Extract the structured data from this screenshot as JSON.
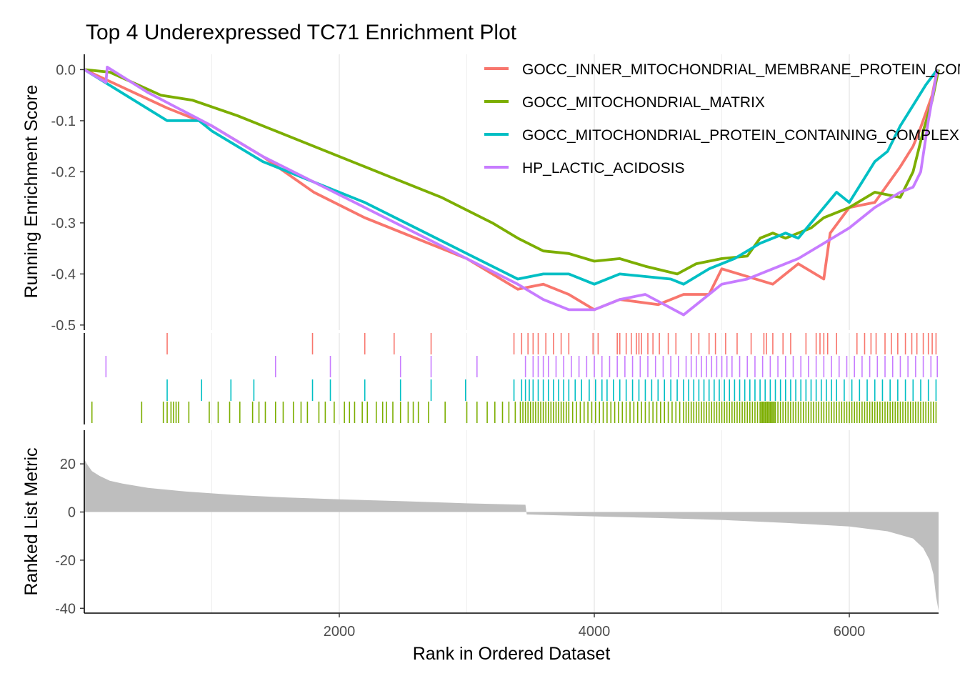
{
  "chart_data": {
    "type": "line",
    "title": "Top 4 Underexpressed TC71 Enrichment Plot",
    "xlabel": "Rank in Ordered Dataset",
    "x_ticks": [
      2000,
      4000,
      6000
    ],
    "xlim": [
      0,
      6700
    ],
    "grid": true,
    "legend_position": "top-right",
    "panels": {
      "running_score": {
        "ylabel": "Running Enrichment Score",
        "ylim": [
          -0.51,
          0.03
        ],
        "y_ticks": [
          0.0,
          -0.1,
          -0.2,
          -0.3,
          -0.4,
          -0.5
        ],
        "y_tick_labels": [
          "0.0",
          "-0.1",
          "-0.2",
          "-0.3",
          "-0.4",
          "-0.5"
        ]
      },
      "ranked_metric": {
        "ylabel": "Ranked List Metric",
        "ylim": [
          -42,
          34
        ],
        "y_ticks": [
          20,
          0,
          -20,
          -40
        ],
        "y_tick_labels": [
          "20",
          "0",
          "-20",
          "-40"
        ],
        "fill_color": "#bebebe",
        "points": [
          [
            0,
            22
          ],
          [
            20,
            20
          ],
          [
            60,
            17
          ],
          [
            120,
            15
          ],
          [
            200,
            13
          ],
          [
            300,
            11.8
          ],
          [
            500,
            10
          ],
          [
            800,
            8.5
          ],
          [
            1200,
            7
          ],
          [
            1600,
            6
          ],
          [
            2000,
            5.3
          ],
          [
            2500,
            4.5
          ],
          [
            3000,
            3.6
          ],
          [
            3460,
            3
          ],
          [
            3470,
            -1
          ],
          [
            4000,
            -1.8
          ],
          [
            4500,
            -2.5
          ],
          [
            5000,
            -3.3
          ],
          [
            5500,
            -4.5
          ],
          [
            6000,
            -6
          ],
          [
            6300,
            -8
          ],
          [
            6500,
            -11
          ],
          [
            6580,
            -15
          ],
          [
            6630,
            -20
          ],
          [
            6660,
            -26
          ],
          [
            6680,
            -35
          ],
          [
            6700,
            -41
          ]
        ]
      }
    },
    "series": [
      {
        "name": "GOCC_INNER_MITOCHONDRIAL_MEMBRANE_PROTEIN_COMPLEX",
        "color": "#F8766D",
        "points": [
          [
            0,
            0
          ],
          [
            650,
            -0.075
          ],
          [
            1000,
            -0.11
          ],
          [
            1400,
            -0.17
          ],
          [
            1800,
            -0.24
          ],
          [
            2200,
            -0.29
          ],
          [
            2600,
            -0.33
          ],
          [
            3000,
            -0.37
          ],
          [
            3400,
            -0.43
          ],
          [
            3600,
            -0.42
          ],
          [
            3800,
            -0.44
          ],
          [
            4000,
            -0.47
          ],
          [
            4200,
            -0.45
          ],
          [
            4500,
            -0.46
          ],
          [
            4700,
            -0.44
          ],
          [
            4900,
            -0.44
          ],
          [
            5000,
            -0.39
          ],
          [
            5400,
            -0.42
          ],
          [
            5600,
            -0.38
          ],
          [
            5800,
            -0.41
          ],
          [
            5850,
            -0.32
          ],
          [
            6000,
            -0.27
          ],
          [
            6200,
            -0.26
          ],
          [
            6400,
            -0.19
          ],
          [
            6500,
            -0.15
          ],
          [
            6550,
            -0.12
          ],
          [
            6650,
            -0.05
          ],
          [
            6690,
            0
          ]
        ],
        "rug_ranks": [
          650,
          1790,
          2200,
          2430,
          2720,
          3370,
          3430,
          3480,
          3520,
          3560,
          3620,
          3680,
          3740,
          3800,
          3990,
          4030,
          4180,
          4200,
          4250,
          4290,
          4330,
          4350,
          4370,
          4420,
          4460,
          4510,
          4580,
          4640,
          4760,
          4820,
          4900,
          4950,
          5030,
          5120,
          5230,
          5330,
          5350,
          5400,
          5480,
          5540,
          5660,
          5740,
          5770,
          5800,
          5830,
          5900,
          6060,
          6120,
          6170,
          6210,
          6280,
          6330,
          6380,
          6440,
          6490,
          6530,
          6580,
          6620,
          6650,
          6680
        ]
      },
      {
        "name": "GOCC_MITOCHONDRIAL_MATRIX",
        "color": "#7CAE00",
        "points": [
          [
            0,
            0
          ],
          [
            200,
            -0.005
          ],
          [
            600,
            -0.05
          ],
          [
            850,
            -0.06
          ],
          [
            1200,
            -0.09
          ],
          [
            1600,
            -0.13
          ],
          [
            2000,
            -0.17
          ],
          [
            2400,
            -0.21
          ],
          [
            2800,
            -0.25
          ],
          [
            3200,
            -0.3
          ],
          [
            3400,
            -0.33
          ],
          [
            3600,
            -0.355
          ],
          [
            3800,
            -0.36
          ],
          [
            4000,
            -0.375
          ],
          [
            4200,
            -0.37
          ],
          [
            4400,
            -0.385
          ],
          [
            4650,
            -0.4
          ],
          [
            4800,
            -0.38
          ],
          [
            5000,
            -0.37
          ],
          [
            5200,
            -0.365
          ],
          [
            5300,
            -0.33
          ],
          [
            5400,
            -0.32
          ],
          [
            5500,
            -0.33
          ],
          [
            5700,
            -0.31
          ],
          [
            5800,
            -0.29
          ],
          [
            6000,
            -0.27
          ],
          [
            6200,
            -0.24
          ],
          [
            6400,
            -0.25
          ],
          [
            6500,
            -0.2
          ],
          [
            6580,
            -0.12
          ],
          [
            6650,
            -0.06
          ],
          [
            6700,
            0
          ]
        ],
        "rug_ranks": [
          60,
          450,
          620,
          650,
          680,
          700,
          720,
          740,
          820,
          980,
          1050,
          1140,
          1220,
          1320,
          1370,
          1420,
          1500,
          1560,
          1640,
          1700,
          1750,
          1840,
          1890,
          1960,
          2040,
          2080,
          2120,
          2180,
          2220,
          2290,
          2340,
          2370,
          2420,
          2480,
          2540,
          2580,
          2620,
          2700,
          2830,
          3000,
          3080,
          3160,
          3220,
          3280,
          3330,
          3380,
          3420,
          3440,
          3460,
          3480,
          3500,
          3520,
          3540,
          3560,
          3580,
          3600,
          3620,
          3640,
          3660,
          3680,
          3700,
          3720,
          3740,
          3760,
          3780,
          3800,
          3830,
          3860,
          3890,
          3920,
          3950,
          3980,
          4010,
          4040,
          4070,
          4100,
          4130,
          4160,
          4190,
          4220,
          4250,
          4280,
          4310,
          4340,
          4370,
          4400,
          4430,
          4460,
          4490,
          4520,
          4550,
          4580,
          4610,
          4640,
          4670,
          4700,
          4720,
          4740,
          4760,
          4780,
          4800,
          4820,
          4840,
          4860,
          4880,
          4900,
          4920,
          4940,
          4960,
          4980,
          5000,
          5020,
          5040,
          5060,
          5080,
          5100,
          5120,
          5140,
          5160,
          5180,
          5200,
          5220,
          5240,
          5260,
          5280,
          5300,
          5310,
          5320,
          5330,
          5340,
          5350,
          5360,
          5370,
          5380,
          5390,
          5400,
          5410,
          5420,
          5440,
          5460,
          5480,
          5500,
          5520,
          5540,
          5560,
          5580,
          5600,
          5620,
          5640,
          5660,
          5680,
          5700,
          5720,
          5740,
          5760,
          5780,
          5800,
          5820,
          5840,
          5860,
          5880,
          5900,
          5920,
          5940,
          5960,
          5980,
          6000,
          6020,
          6040,
          6060,
          6080,
          6100,
          6120,
          6140,
          6160,
          6180,
          6200,
          6220,
          6240,
          6260,
          6280,
          6300,
          6320,
          6340,
          6360,
          6380,
          6400,
          6420,
          6440,
          6460,
          6480,
          6500,
          6520,
          6540,
          6560,
          6580,
          6600,
          6620,
          6640,
          6660,
          6680
        ]
      },
      {
        "name": "GOCC_MITOCHONDRIAL_PROTEIN_CONTAINING_COMPLEX",
        "color": "#00BFC4",
        "points": [
          [
            0,
            0
          ],
          [
            650,
            -0.1
          ],
          [
            900,
            -0.1
          ],
          [
            1000,
            -0.12
          ],
          [
            1400,
            -0.18
          ],
          [
            1800,
            -0.22
          ],
          [
            2200,
            -0.26
          ],
          [
            2600,
            -0.31
          ],
          [
            3000,
            -0.36
          ],
          [
            3400,
            -0.41
          ],
          [
            3600,
            -0.4
          ],
          [
            3800,
            -0.4
          ],
          [
            4000,
            -0.42
          ],
          [
            4200,
            -0.4
          ],
          [
            4600,
            -0.41
          ],
          [
            4700,
            -0.42
          ],
          [
            4900,
            -0.39
          ],
          [
            5100,
            -0.37
          ],
          [
            5300,
            -0.34
          ],
          [
            5500,
            -0.32
          ],
          [
            5600,
            -0.33
          ],
          [
            5700,
            -0.3
          ],
          [
            5800,
            -0.27
          ],
          [
            5900,
            -0.24
          ],
          [
            6000,
            -0.26
          ],
          [
            6100,
            -0.22
          ],
          [
            6200,
            -0.18
          ],
          [
            6300,
            -0.16
          ],
          [
            6400,
            -0.11
          ],
          [
            6500,
            -0.07
          ],
          [
            6600,
            -0.03
          ],
          [
            6690,
            0
          ]
        ],
        "rug_ranks": [
          650,
          920,
          1150,
          1330,
          1790,
          1930,
          2200,
          2480,
          2720,
          2990,
          3370,
          3430,
          3460,
          3490,
          3520,
          3560,
          3600,
          3640,
          3680,
          3720,
          3760,
          3800,
          3850,
          3900,
          3960,
          4010,
          4060,
          4100,
          4150,
          4200,
          4250,
          4300,
          4350,
          4400,
          4450,
          4500,
          4550,
          4600,
          4650,
          4700,
          4740,
          4780,
          4820,
          4860,
          4900,
          4940,
          4980,
          5020,
          5060,
          5100,
          5140,
          5180,
          5220,
          5260,
          5300,
          5340,
          5380,
          5420,
          5460,
          5500,
          5540,
          5580,
          5620,
          5660,
          5700,
          5740,
          5780,
          5820,
          5860,
          5900,
          5960,
          6020,
          6080,
          6140,
          6200,
          6260,
          6320,
          6380,
          6440,
          6500,
          6560,
          6620,
          6680
        ]
      },
      {
        "name": "HP_LACTIC_ACIDOSIS",
        "color": "#C77CFF",
        "points": [
          [
            0,
            0
          ],
          [
            170,
            -0.025
          ],
          [
            180,
            0.005
          ],
          [
            500,
            -0.045
          ],
          [
            1000,
            -0.11
          ],
          [
            1400,
            -0.17
          ],
          [
            1800,
            -0.22
          ],
          [
            2200,
            -0.27
          ],
          [
            2600,
            -0.32
          ],
          [
            3000,
            -0.37
          ],
          [
            3400,
            -0.42
          ],
          [
            3600,
            -0.45
          ],
          [
            3800,
            -0.47
          ],
          [
            4000,
            -0.47
          ],
          [
            4200,
            -0.45
          ],
          [
            4400,
            -0.44
          ],
          [
            4700,
            -0.48
          ],
          [
            4900,
            -0.44
          ],
          [
            5000,
            -0.42
          ],
          [
            5200,
            -0.41
          ],
          [
            5400,
            -0.39
          ],
          [
            5600,
            -0.37
          ],
          [
            5800,
            -0.34
          ],
          [
            6000,
            -0.31
          ],
          [
            6200,
            -0.27
          ],
          [
            6400,
            -0.24
          ],
          [
            6500,
            -0.23
          ],
          [
            6560,
            -0.2
          ],
          [
            6620,
            -0.1
          ],
          [
            6690,
            0
          ]
        ],
        "rug_ranks": [
          170,
          1500,
          1930,
          2480,
          2720,
          3080,
          3460,
          3520,
          3560,
          3600,
          3640,
          3700,
          3760,
          3820,
          3880,
          3940,
          4000,
          4060,
          4120,
          4180,
          4240,
          4300,
          4360,
          4420,
          4480,
          4540,
          4600,
          4660,
          4720,
          4760,
          4800,
          4840,
          4880,
          4920,
          4960,
          5000,
          5040,
          5080,
          5140,
          5200,
          5260,
          5320,
          5380,
          5440,
          5500,
          5560,
          5620,
          5680,
          5740,
          5800,
          5860,
          5920,
          5980,
          6040,
          6100,
          6160,
          6220,
          6280,
          6340,
          6400,
          6460,
          6520,
          6580,
          6640,
          6690
        ]
      }
    ]
  }
}
